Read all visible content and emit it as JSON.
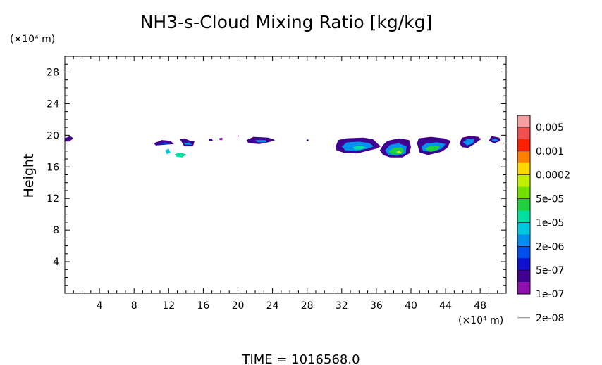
{
  "chart_data": {
    "type": "heatmap",
    "title": "NH3-s-Cloud Mixing Ratio [kg/kg]",
    "xlabel": "",
    "ylabel": "Height",
    "x_unit": "(×10⁴ m)",
    "y_unit": "(×10⁴ m)",
    "xlim": [
      0,
      51
    ],
    "ylim": [
      0,
      30
    ],
    "xticks": [
      4,
      8,
      12,
      16,
      20,
      24,
      28,
      32,
      36,
      40,
      44,
      48
    ],
    "yticks": [
      4,
      8,
      12,
      16,
      20,
      24,
      28
    ],
    "footer": "TIME  =  1016568.0",
    "colorbar": {
      "labels": [
        "0.005",
        "0.001",
        "0.0002",
        "5e-05",
        "1e-05",
        "2e-06",
        "5e-07",
        "1e-07",
        "2e-08"
      ],
      "colors": [
        "#f5a0a0",
        "#f05050",
        "#ff2000",
        "#ff8000",
        "#ffd800",
        "#c0f000",
        "#70e000",
        "#20d040",
        "#00e0a0",
        "#00c8e0",
        "#0090f0",
        "#0050f0",
        "#1010d0",
        "#400090",
        "#9010b0"
      ]
    },
    "patches": [
      {
        "level": 13,
        "points": [
          [
            0,
            19.6
          ],
          [
            0.6,
            19.9
          ],
          [
            1,
            19.6
          ],
          [
            0.5,
            19.2
          ],
          [
            0,
            19.2
          ]
        ]
      },
      {
        "level": 13,
        "points": [
          [
            10.3,
            19.0
          ],
          [
            11.2,
            19.4
          ],
          [
            12.2,
            19.3
          ],
          [
            12.6,
            18.9
          ],
          [
            11.6,
            18.8
          ],
          [
            10.5,
            18.7
          ]
        ]
      },
      {
        "level": 11,
        "points": [
          [
            10.8,
            19.0
          ],
          [
            11.6,
            19.1
          ],
          [
            12.2,
            18.9
          ],
          [
            11.4,
            18.9
          ]
        ]
      },
      {
        "level": 9,
        "points": [
          [
            11.6,
            18.1
          ],
          [
            12.0,
            18.3
          ],
          [
            12.2,
            17.8
          ],
          [
            11.8,
            17.6
          ]
        ]
      },
      {
        "level": 8,
        "points": [
          [
            12.7,
            17.6
          ],
          [
            13.3,
            17.8
          ],
          [
            14.0,
            17.6
          ],
          [
            13.6,
            17.2
          ],
          [
            12.9,
            17.3
          ]
        ]
      },
      {
        "level": 13,
        "points": [
          [
            13.3,
            19.5
          ],
          [
            13.8,
            19.6
          ],
          [
            14.5,
            19.3
          ],
          [
            15.0,
            19.3
          ],
          [
            14.8,
            18.6
          ],
          [
            13.8,
            18.6
          ]
        ]
      },
      {
        "level": 10,
        "points": [
          [
            13.7,
            19.0
          ],
          [
            14.4,
            19.1
          ],
          [
            14.7,
            18.8
          ],
          [
            13.9,
            18.8
          ]
        ]
      },
      {
        "level": 13,
        "points": [
          [
            16.6,
            19.5
          ],
          [
            17.0,
            19.6
          ],
          [
            17.1,
            19.3
          ],
          [
            16.7,
            19.3
          ]
        ]
      },
      {
        "level": 14,
        "points": [
          [
            17.8,
            19.6
          ],
          [
            18.2,
            19.7
          ],
          [
            18.2,
            19.4
          ],
          [
            17.9,
            19.4
          ]
        ]
      },
      {
        "level": 13,
        "points": [
          [
            21.0,
            19.4
          ],
          [
            21.8,
            19.8
          ],
          [
            23.5,
            19.7
          ],
          [
            24.3,
            19.4
          ],
          [
            23.5,
            19.1
          ],
          [
            22.5,
            18.9
          ],
          [
            21.2,
            19.0
          ]
        ]
      },
      {
        "level": 10,
        "points": [
          [
            22.0,
            19.4
          ],
          [
            23.2,
            19.4
          ],
          [
            23.3,
            19.1
          ],
          [
            22.3,
            19.1
          ]
        ]
      },
      {
        "level": 14,
        "points": [
          [
            19.9,
            19.9
          ],
          [
            20.1,
            20.0
          ],
          [
            20.1,
            19.8
          ]
        ]
      },
      {
        "level": 13,
        "points": [
          [
            27.9,
            19.4
          ],
          [
            28.1,
            19.5
          ],
          [
            28.2,
            19.3
          ],
          [
            28.0,
            19.2
          ]
        ]
      },
      {
        "level": 13,
        "points": [
          [
            31.3,
            18.6
          ],
          [
            31.6,
            19.4
          ],
          [
            32.5,
            19.6
          ],
          [
            34.5,
            19.7
          ],
          [
            35.6,
            19.5
          ],
          [
            36.1,
            19.0
          ],
          [
            36.5,
            18.6
          ],
          [
            36.0,
            18.3
          ],
          [
            35.2,
            18.1
          ],
          [
            33.8,
            17.7
          ],
          [
            32.2,
            17.8
          ],
          [
            31.4,
            18.1
          ]
        ]
      },
      {
        "level": 10,
        "points": [
          [
            32.0,
            18.6
          ],
          [
            32.6,
            19.1
          ],
          [
            34.0,
            19.2
          ],
          [
            35.2,
            19.0
          ],
          [
            35.7,
            18.6
          ],
          [
            35.0,
            18.3
          ],
          [
            33.6,
            18.0
          ],
          [
            32.4,
            18.1
          ]
        ]
      },
      {
        "level": 8,
        "points": [
          [
            33.3,
            18.5
          ],
          [
            34.1,
            18.7
          ],
          [
            34.8,
            18.5
          ],
          [
            34.2,
            18.2
          ],
          [
            33.5,
            18.2
          ]
        ]
      },
      {
        "level": 13,
        "points": [
          [
            36.4,
            18.1
          ],
          [
            36.8,
            18.8
          ],
          [
            37.3,
            19.3
          ],
          [
            38.6,
            19.6
          ],
          [
            39.8,
            19.4
          ],
          [
            40.0,
            18.5
          ],
          [
            39.8,
            17.7
          ],
          [
            39.0,
            17.2
          ],
          [
            37.6,
            17.2
          ],
          [
            36.8,
            17.5
          ]
        ]
      },
      {
        "level": 10,
        "points": [
          [
            37.0,
            18.1
          ],
          [
            37.6,
            18.8
          ],
          [
            38.6,
            19.0
          ],
          [
            39.5,
            18.6
          ],
          [
            39.4,
            17.7
          ],
          [
            38.4,
            17.4
          ],
          [
            37.4,
            17.5
          ]
        ]
      },
      {
        "level": 7,
        "points": [
          [
            37.4,
            17.9
          ],
          [
            38.0,
            18.4
          ],
          [
            38.9,
            18.5
          ],
          [
            39.2,
            18.0
          ],
          [
            38.8,
            17.6
          ],
          [
            37.8,
            17.6
          ]
        ]
      },
      {
        "level": 5,
        "points": [
          [
            38.3,
            17.9
          ],
          [
            38.7,
            18.1
          ],
          [
            38.9,
            17.8
          ],
          [
            38.5,
            17.7
          ]
        ]
      },
      {
        "level": 13,
        "points": [
          [
            40.7,
            19.0
          ],
          [
            40.9,
            19.6
          ],
          [
            42.3,
            19.8
          ],
          [
            43.8,
            19.6
          ],
          [
            44.6,
            19.3
          ],
          [
            44.2,
            18.4
          ],
          [
            43.5,
            17.9
          ],
          [
            42.0,
            17.5
          ],
          [
            41.0,
            17.8
          ]
        ]
      },
      {
        "level": 10,
        "points": [
          [
            41.2,
            18.6
          ],
          [
            41.8,
            19.0
          ],
          [
            43.0,
            19.1
          ],
          [
            44.0,
            18.9
          ],
          [
            43.6,
            18.3
          ],
          [
            42.4,
            17.9
          ],
          [
            41.4,
            18.0
          ]
        ]
      },
      {
        "level": 7,
        "points": [
          [
            41.6,
            18.3
          ],
          [
            42.3,
            18.7
          ],
          [
            43.3,
            18.6
          ],
          [
            43.1,
            18.2
          ],
          [
            42.2,
            17.9
          ]
        ]
      },
      {
        "level": 13,
        "points": [
          [
            45.6,
            19.0
          ],
          [
            45.9,
            19.7
          ],
          [
            46.8,
            19.9
          ],
          [
            47.8,
            19.8
          ],
          [
            48.1,
            19.5
          ],
          [
            47.2,
            18.8
          ],
          [
            46.6,
            18.4
          ],
          [
            45.9,
            18.5
          ]
        ]
      },
      {
        "level": 10,
        "points": [
          [
            46.0,
            19.1
          ],
          [
            46.5,
            19.5
          ],
          [
            47.3,
            19.5
          ],
          [
            47.2,
            19.0
          ],
          [
            46.5,
            18.7
          ]
        ]
      },
      {
        "level": 13,
        "points": [
          [
            49.0,
            19.3
          ],
          [
            49.3,
            19.9
          ],
          [
            50.2,
            19.7
          ],
          [
            50.4,
            19.3
          ],
          [
            49.6,
            19.0
          ]
        ]
      },
      {
        "level": 10,
        "points": [
          [
            49.3,
            19.4
          ],
          [
            49.8,
            19.6
          ],
          [
            50.1,
            19.3
          ],
          [
            49.6,
            19.2
          ]
        ]
      }
    ]
  }
}
